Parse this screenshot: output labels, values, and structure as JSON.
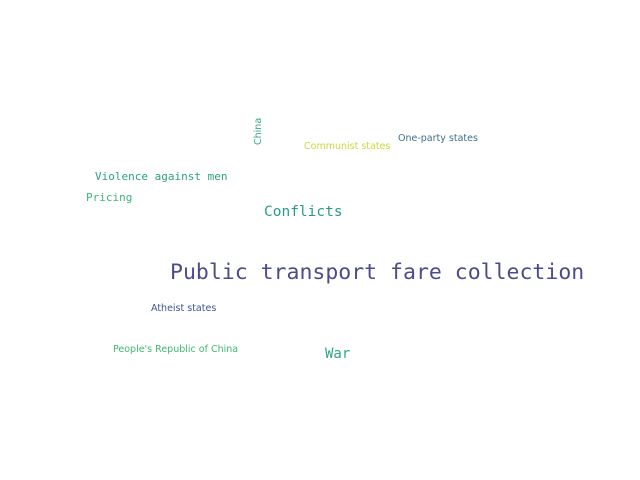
{
  "words": {
    "china": {
      "text": "China",
      "color": "#36a887"
    },
    "communist_states": {
      "text": "Communist states",
      "color": "#c9d93a"
    },
    "one_party_states": {
      "text": "One-party states",
      "color": "#3f6f8f"
    },
    "violence_against_men": {
      "text": "Violence against men",
      "color": "#2ca37a"
    },
    "pricing": {
      "text": "Pricing",
      "color": "#3cb77a"
    },
    "conflicts": {
      "text": "Conflicts",
      "color": "#2a9a8c"
    },
    "public_transport_fare_collection": {
      "text": "Public transport fare collection",
      "color": "#4c4c8c"
    },
    "atheist_states": {
      "text": "Atheist states",
      "color": "#3e5494"
    },
    "peoples_republic_of_china": {
      "text": "People's Republic of China",
      "color": "#3dbb6f"
    },
    "war": {
      "text": "War",
      "color": "#2fa58a"
    }
  }
}
